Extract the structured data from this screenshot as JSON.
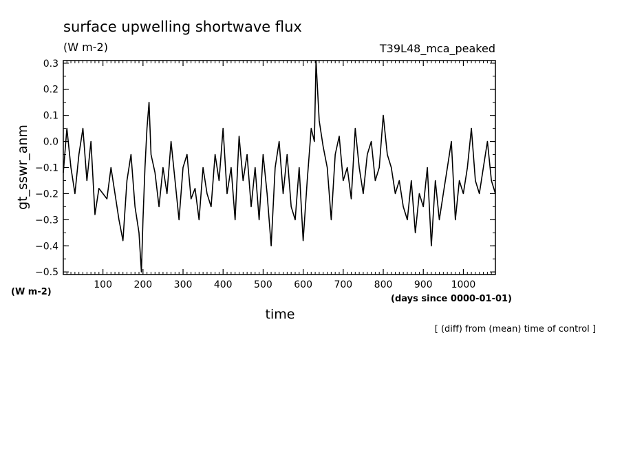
{
  "chart_data": {
    "type": "line",
    "title": "surface upwelling shortwave flux",
    "units_top": "(W m-2)",
    "case_label": "T39L48_mca_peaked",
    "ylabel": "gt_sswr_anm",
    "units_left": "(W m-2)",
    "xlabel": "time",
    "x_units": "(days since 0000-01-01)",
    "note": "[ (diff) from (mean) time of control ]",
    "xlim": [
      1,
      1080
    ],
    "ylim": [
      -0.51,
      0.31
    ],
    "x_ticks": [
      100,
      200,
      300,
      400,
      500,
      600,
      700,
      800,
      900,
      1000
    ],
    "y_ticks": [
      -0.5,
      -0.4,
      -0.3,
      -0.2,
      -0.1,
      0.0,
      0.1,
      0.2,
      0.3
    ],
    "x_tick_labels": [
      "100",
      "200",
      "300",
      "400",
      "500",
      "600",
      "700",
      "800",
      "900",
      "1000"
    ],
    "y_tick_labels": [
      "-0.5",
      "-0.4",
      "-0.3",
      "-0.2",
      "-0.1",
      "0.0",
      "0.1",
      "0.2",
      "0.3"
    ],
    "grid": false,
    "series": [
      {
        "x": [
          1,
          10,
          20,
          30,
          40,
          50,
          60,
          70,
          80,
          90,
          100,
          110,
          120,
          130,
          140,
          150,
          160,
          170,
          180,
          190,
          196,
          200,
          205,
          210,
          215,
          220,
          230,
          240,
          250,
          260,
          270,
          280,
          290,
          300,
          310,
          320,
          330,
          340,
          350,
          360,
          370,
          380,
          390,
          400,
          410,
          420,
          430,
          440,
          450,
          460,
          470,
          480,
          490,
          500,
          510,
          520,
          530,
          540,
          550,
          560,
          570,
          580,
          590,
          600,
          610,
          620,
          628,
          632,
          640,
          650,
          660,
          670,
          680,
          690,
          700,
          710,
          720,
          730,
          740,
          750,
          760,
          770,
          780,
          790,
          800,
          810,
          820,
          830,
          840,
          850,
          860,
          870,
          880,
          890,
          900,
          910,
          920,
          930,
          940,
          950,
          960,
          970,
          980,
          990,
          1000,
          1010,
          1020,
          1030,
          1040,
          1050,
          1060,
          1070,
          1080
        ],
        "y": [
          -0.12,
          0.05,
          -0.1,
          -0.2,
          -0.05,
          0.05,
          -0.15,
          0.0,
          -0.28,
          -0.18,
          -0.2,
          -0.22,
          -0.1,
          -0.2,
          -0.3,
          -0.38,
          -0.15,
          -0.05,
          -0.25,
          -0.35,
          -0.5,
          -0.3,
          -0.1,
          0.05,
          0.15,
          -0.05,
          -0.12,
          -0.25,
          -0.1,
          -0.2,
          0.0,
          -0.15,
          -0.3,
          -0.1,
          -0.05,
          -0.22,
          -0.18,
          -0.3,
          -0.1,
          -0.2,
          -0.25,
          -0.05,
          -0.15,
          0.05,
          -0.2,
          -0.1,
          -0.3,
          0.02,
          -0.15,
          -0.05,
          -0.25,
          -0.1,
          -0.3,
          -0.05,
          -0.2,
          -0.4,
          -0.1,
          0.0,
          -0.2,
          -0.05,
          -0.25,
          -0.3,
          -0.1,
          -0.38,
          -0.15,
          0.05,
          0.0,
          0.31,
          0.08,
          -0.02,
          -0.1,
          -0.3,
          -0.05,
          0.02,
          -0.15,
          -0.1,
          -0.22,
          0.05,
          -0.1,
          -0.2,
          -0.05,
          0.0,
          -0.15,
          -0.1,
          0.1,
          -0.05,
          -0.1,
          -0.2,
          -0.15,
          -0.25,
          -0.3,
          -0.15,
          -0.35,
          -0.2,
          -0.25,
          -0.1,
          -0.4,
          -0.15,
          -0.3,
          -0.2,
          -0.1,
          0.0,
          -0.3,
          -0.15,
          -0.2,
          -0.1,
          0.05,
          -0.15,
          -0.2,
          -0.1,
          0.0,
          -0.15,
          -0.2
        ]
      }
    ]
  }
}
